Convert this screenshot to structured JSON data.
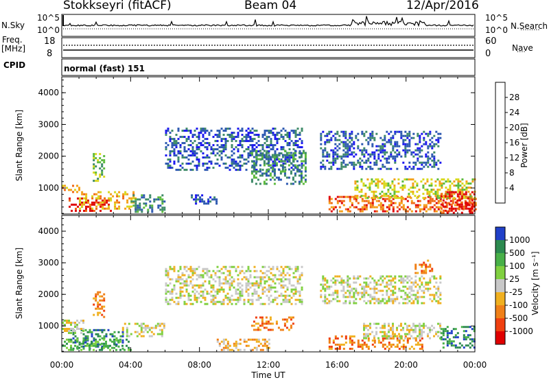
{
  "header": {
    "station": "Stokkseyri (fitACF)",
    "beam": "Beam 04",
    "date": "12/Apr/2016"
  },
  "top_panel": {
    "left_label": "N.Sky",
    "left_ticks": [
      "10^5",
      "10^0"
    ],
    "right_ticks": [
      "10^5",
      "10^0"
    ],
    "right_label": "N.Search",
    "right_legend": "·········"
  },
  "freq_panel": {
    "label_top": "Freq.",
    "label_unit": "[MHz]",
    "left_ticks": [
      "18",
      "8"
    ],
    "right_ticks": [
      "60",
      "0"
    ],
    "right_label": "Nave",
    "right_legend": "····"
  },
  "cpid": {
    "label": "CPID",
    "value": "normal (fast) 151"
  },
  "chart_data": [
    {
      "type": "heatmap",
      "title": "",
      "ylabel": "Slant Range [km]",
      "yticks": [
        "1000",
        "2000",
        "3000",
        "4000"
      ],
      "ylim": [
        180,
        4500
      ],
      "xlim": [
        0,
        24
      ],
      "colorbar_label": "Power [dB]",
      "colorbar_ticks": [
        "4",
        "8",
        "12",
        "16",
        "20",
        "24",
        "28"
      ],
      "colorbar_colors": [
        "#1a16f0",
        "#2c58b0",
        "#3e8a68",
        "#5cba3c",
        "#d8d81c",
        "#f4a018",
        "#f06814",
        "#e00808"
      ],
      "blobs": [
        {
          "t0": 0.4,
          "t1": 2.8,
          "r0": 300,
          "r1": 700,
          "level": 7
        },
        {
          "t0": 1.0,
          "t1": 4.3,
          "r0": 350,
          "r1": 900,
          "level": 5
        },
        {
          "t0": 0.0,
          "t1": 1.2,
          "r0": 800,
          "r1": 1100,
          "level": 5
        },
        {
          "t0": 1.8,
          "t1": 2.5,
          "r0": 1200,
          "r1": 2100,
          "level": 3
        },
        {
          "t0": 4.0,
          "t1": 6.0,
          "r0": 250,
          "r1": 800,
          "level": 2
        },
        {
          "t0": 6.0,
          "t1": 14.0,
          "r0": 1600,
          "r1": 2900,
          "level": 1
        },
        {
          "t0": 7.5,
          "t1": 9.0,
          "r0": 500,
          "r1": 800,
          "level": 1
        },
        {
          "t0": 11.0,
          "t1": 14.2,
          "r0": 1100,
          "r1": 2200,
          "level": 2
        },
        {
          "t0": 15.0,
          "t1": 22.0,
          "r0": 1600,
          "r1": 2800,
          "level": 1
        },
        {
          "t0": 15.5,
          "t1": 24.0,
          "r0": 250,
          "r1": 750,
          "level": 6
        },
        {
          "t0": 17.0,
          "t1": 24.0,
          "r0": 700,
          "r1": 1300,
          "level": 4
        },
        {
          "t0": 22.0,
          "t1": 24.0,
          "r0": 250,
          "r1": 900,
          "level": 7
        }
      ]
    },
    {
      "type": "heatmap",
      "title": "",
      "ylabel": "Slant Range [km]",
      "xlabel": "Time UT",
      "yticks": [
        "1000",
        "2000",
        "3000",
        "4000"
      ],
      "xticks": [
        "00:00",
        "04:00",
        "08:00",
        "12:00",
        "16:00",
        "20:00",
        "00:00"
      ],
      "ylim": [
        180,
        4500
      ],
      "xlim": [
        0,
        24
      ],
      "colorbar_label": "Velocity [m s⁻¹]",
      "colorbar_ticks": [
        "1000",
        "500",
        "100",
        "25",
        "-25",
        "-100",
        "-500",
        "-1000"
      ],
      "colorbar_colors": [
        "#2040c8",
        "#2c8a50",
        "#48b048",
        "#80d040",
        "#c8c8c8",
        "#f0b020",
        "#f08018",
        "#f04010",
        "#e00000"
      ],
      "blobs": [
        {
          "t0": 0.5,
          "t1": 3.5,
          "r0": 300,
          "r1": 900,
          "level": 1
        },
        {
          "t0": 0.0,
          "t1": 4.0,
          "r0": 250,
          "r1": 600,
          "level": 2
        },
        {
          "t0": 1.8,
          "t1": 2.5,
          "r0": 1300,
          "r1": 2100,
          "level": 6
        },
        {
          "t0": 0.0,
          "t1": 1.2,
          "r0": 800,
          "r1": 1200,
          "level": 4
        },
        {
          "t0": 3.5,
          "t1": 6.0,
          "r0": 700,
          "r1": 1100,
          "level": 4
        },
        {
          "t0": 6.0,
          "t1": 14.0,
          "r0": 1700,
          "r1": 2900,
          "level": 4
        },
        {
          "t0": 11.0,
          "t1": 13.5,
          "r0": 900,
          "r1": 1300,
          "level": 6
        },
        {
          "t0": 9.0,
          "t1": 12.0,
          "r0": 250,
          "r1": 600,
          "level": 5
        },
        {
          "t0": 15.0,
          "t1": 22.0,
          "r0": 1700,
          "r1": 2600,
          "level": 4
        },
        {
          "t0": 15.5,
          "t1": 21.0,
          "r0": 250,
          "r1": 700,
          "level": 6
        },
        {
          "t0": 17.5,
          "t1": 22.0,
          "r0": 600,
          "r1": 1100,
          "level": 4
        },
        {
          "t0": 22.0,
          "t1": 24.0,
          "r0": 300,
          "r1": 1000,
          "level": 1
        },
        {
          "t0": 20.5,
          "t1": 21.5,
          "r0": 2700,
          "r1": 3100,
          "level": 6
        }
      ]
    }
  ]
}
